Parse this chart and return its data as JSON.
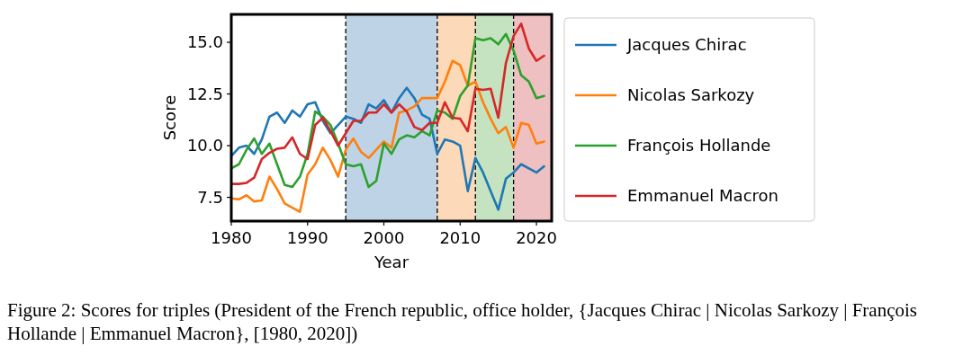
{
  "chart_data": {
    "type": "line",
    "xlabel": "Year",
    "ylabel": "Score",
    "x": [
      1980,
      1981,
      1982,
      1983,
      1984,
      1985,
      1986,
      1987,
      1988,
      1989,
      1990,
      1991,
      1992,
      1993,
      1994,
      1995,
      1996,
      1997,
      1998,
      1999,
      2000,
      2001,
      2002,
      2003,
      2004,
      2005,
      2006,
      2007,
      2008,
      2009,
      2010,
      2011,
      2012,
      2013,
      2014,
      2015,
      2016,
      2017,
      2018,
      2019,
      2020,
      2021
    ],
    "series": [
      {
        "name": "Jacques Chirac",
        "color": "#1f77b4",
        "values": [
          9.5,
          9.9,
          10.0,
          9.6,
          10.3,
          11.4,
          11.6,
          11.1,
          11.7,
          11.4,
          12.0,
          12.1,
          11.2,
          10.6,
          11.0,
          11.4,
          11.3,
          11.1,
          12.0,
          11.8,
          12.2,
          11.6,
          12.3,
          12.8,
          12.3,
          11.5,
          11.3,
          9.6,
          10.3,
          10.2,
          10.0,
          7.8,
          9.4,
          8.7,
          7.8,
          6.9,
          8.4,
          8.7,
          9.1,
          8.9,
          8.7,
          9.0
        ]
      },
      {
        "name": "Nicolas Sarkozy",
        "color": "#ff7f0e",
        "values": [
          7.45,
          7.4,
          7.6,
          7.3,
          7.35,
          8.5,
          7.9,
          7.2,
          7.0,
          6.8,
          8.6,
          9.1,
          9.9,
          9.3,
          8.5,
          9.8,
          10.35,
          9.7,
          9.4,
          9.8,
          10.2,
          9.9,
          11.6,
          11.7,
          11.9,
          12.3,
          12.3,
          12.3,
          13.1,
          14.1,
          13.9,
          12.9,
          13.1,
          12.1,
          11.3,
          10.6,
          10.9,
          9.9,
          11.1,
          11.0,
          10.1,
          10.2
        ]
      },
      {
        "name": "François Hollande",
        "color": "#2ca02c",
        "values": [
          8.9,
          9.1,
          9.8,
          10.35,
          9.6,
          10.1,
          9.1,
          8.1,
          8.0,
          8.5,
          9.6,
          11.65,
          11.4,
          11.0,
          10.1,
          9.1,
          9.0,
          9.1,
          8.0,
          8.3,
          10.1,
          9.6,
          10.3,
          10.5,
          10.4,
          10.7,
          10.5,
          11.7,
          11.6,
          11.3,
          12.4,
          12.9,
          15.2,
          15.1,
          15.2,
          14.9,
          15.4,
          14.6,
          13.4,
          13.1,
          12.3,
          12.4
        ]
      },
      {
        "name": "Emmanuel Macron",
        "color": "#d62728",
        "values": [
          8.15,
          8.15,
          8.2,
          8.45,
          9.35,
          9.65,
          9.85,
          9.9,
          10.4,
          9.6,
          9.35,
          11.0,
          11.35,
          10.7,
          10.0,
          10.6,
          11.2,
          11.2,
          11.6,
          11.6,
          12.0,
          11.6,
          12.0,
          11.65,
          10.9,
          10.75,
          11.1,
          11.1,
          12.1,
          11.35,
          11.3,
          10.7,
          12.75,
          12.7,
          12.75,
          11.35,
          14.0,
          15.3,
          15.9,
          14.7,
          14.1,
          14.35
        ]
      }
    ],
    "xlim": [
      1980,
      2022
    ],
    "xticks": [
      1980,
      1990,
      2000,
      2010,
      2020
    ],
    "ylim": [
      6.35,
      16.35
    ],
    "yticks": [
      {
        "value": 7.5,
        "label": "7.5"
      },
      {
        "value": 10,
        "label": "10.0"
      },
      {
        "value": 12.5,
        "label": "12.5"
      },
      {
        "value": 15,
        "label": "15.0"
      }
    ],
    "bands": [
      {
        "axis": "x",
        "from": 1995,
        "to": 2007,
        "color": "#bed4e6"
      },
      {
        "axis": "x",
        "from": 2007,
        "to": 2012,
        "color": "#fcd9b8"
      },
      {
        "axis": "x",
        "from": 2012,
        "to": 2017,
        "color": "#c5e3c1"
      },
      {
        "axis": "x",
        "from": 2017,
        "to": 2022,
        "color": "#eec0c1"
      }
    ],
    "ref_lines": [
      {
        "axis": "x",
        "value": 1995,
        "color": "#000000",
        "line_style": "dashed"
      },
      {
        "axis": "x",
        "value": 2007,
        "color": "#000000",
        "line_style": "dashed"
      },
      {
        "axis": "x",
        "value": 2012,
        "color": "#000000",
        "line_style": "dashed"
      },
      {
        "axis": "x",
        "value": 2017,
        "color": "#000000",
        "line_style": "dashed"
      }
    ],
    "grid": false,
    "legend": "right",
    "marker": "none",
    "line_style": "solid",
    "annotations": [
      "Figure 2: Scores for triples (President of the French republic, office holder, {Jacques Chirac | Nicolas Sarkozy | François Hollande | Emmanuel Macron}, [1980, 2020])"
    ]
  }
}
